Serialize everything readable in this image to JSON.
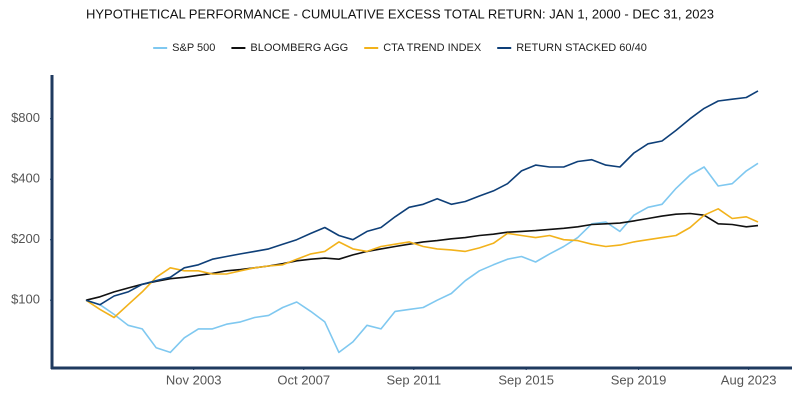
{
  "chart_data": {
    "type": "line",
    "title": "HYPOTHETICAL PERFORMANCE - CUMULATIVE EXCESS TOTAL RETURN: JAN 1, 2000 - DEC 31, 2023",
    "x": [
      "2000-01",
      "2000-07",
      "2001-01",
      "2001-07",
      "2002-01",
      "2002-07",
      "2003-01",
      "2003-07",
      "2004-01",
      "2004-07",
      "2005-01",
      "2005-07",
      "2006-01",
      "2006-07",
      "2007-01",
      "2007-07",
      "2008-01",
      "2008-07",
      "2009-01",
      "2009-07",
      "2010-01",
      "2010-07",
      "2011-01",
      "2011-07",
      "2012-01",
      "2012-07",
      "2013-01",
      "2013-07",
      "2014-01",
      "2014-07",
      "2015-01",
      "2015-07",
      "2016-01",
      "2016-07",
      "2017-01",
      "2017-07",
      "2018-01",
      "2018-07",
      "2019-01",
      "2019-07",
      "2020-01",
      "2020-07",
      "2021-01",
      "2021-07",
      "2022-01",
      "2022-07",
      "2023-01",
      "2023-07",
      "2023-12"
    ],
    "xlim": [
      "2000-01",
      "2023-12"
    ],
    "xticks": [
      {
        "value": "2003-11",
        "label": "Nov 2003"
      },
      {
        "value": "2007-10",
        "label": "Oct 2007"
      },
      {
        "value": "2011-09",
        "label": "Sep 2011"
      },
      {
        "value": "2015-09",
        "label": "Sep 2015"
      },
      {
        "value": "2019-09",
        "label": "Sep 2019"
      },
      {
        "value": "2023-08",
        "label": "Aug 2023"
      }
    ],
    "ylim": [
      46,
      1320
    ],
    "log_scale": true,
    "yticks": [
      {
        "value": 100,
        "label": "$100"
      },
      {
        "value": 200,
        "label": "$200"
      },
      {
        "value": 400,
        "label": "$400"
      },
      {
        "value": 800,
        "label": "$800"
      }
    ],
    "grid": false,
    "legend": "top",
    "series": [
      {
        "name": "S&P 500",
        "color": "#7fc8f0",
        "values": [
          100,
          95,
          85,
          75,
          72,
          58,
          55,
          65,
          72,
          72,
          76,
          78,
          82,
          84,
          92,
          98,
          88,
          78,
          55,
          62,
          75,
          72,
          88,
          90,
          92,
          100,
          108,
          125,
          140,
          150,
          160,
          165,
          155,
          170,
          185,
          205,
          240,
          245,
          220,
          265,
          290,
          300,
          360,
          420,
          460,
          370,
          380,
          440,
          480
        ]
      },
      {
        "name": "BLOOMBERG AGG",
        "color": "#111111",
        "values": [
          100,
          104,
          110,
          115,
          120,
          124,
          128,
          130,
          133,
          136,
          140,
          142,
          145,
          148,
          152,
          157,
          160,
          162,
          160,
          168,
          175,
          180,
          185,
          190,
          195,
          198,
          202,
          205,
          210,
          213,
          218,
          220,
          222,
          225,
          228,
          232,
          238,
          240,
          242,
          248,
          255,
          262,
          268,
          270,
          265,
          240,
          238,
          232,
          235
        ]
      },
      {
        "name": "CTA TREND INDEX",
        "color": "#f2b21b",
        "values": [
          100,
          90,
          82,
          95,
          110,
          130,
          145,
          140,
          140,
          135,
          135,
          140,
          145,
          148,
          150,
          160,
          170,
          175,
          195,
          180,
          175,
          185,
          190,
          195,
          185,
          180,
          178,
          175,
          182,
          192,
          215,
          210,
          205,
          210,
          200,
          198,
          190,
          185,
          188,
          195,
          200,
          205,
          210,
          230,
          265,
          285,
          255,
          260,
          245
        ]
      },
      {
        "name": "RETURN STACKED 60/40",
        "color": "#0e3f78",
        "values": [
          100,
          95,
          105,
          110,
          120,
          125,
          130,
          145,
          150,
          160,
          165,
          170,
          175,
          180,
          190,
          200,
          215,
          230,
          210,
          200,
          220,
          230,
          260,
          290,
          300,
          320,
          300,
          310,
          330,
          350,
          380,
          440,
          470,
          460,
          460,
          490,
          500,
          470,
          460,
          540,
          600,
          620,
          700,
          800,
          900,
          980,
          1000,
          1020,
          1100
        ]
      }
    ]
  }
}
